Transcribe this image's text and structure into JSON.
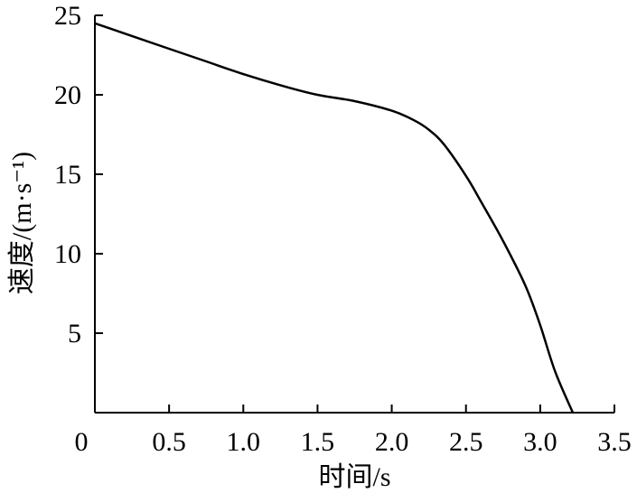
{
  "chart_data": {
    "type": "line",
    "xlabel": "时间/s",
    "ylabel": "速度/(m·s⁻¹)",
    "xlim": [
      0,
      3.5
    ],
    "ylim": [
      0,
      25
    ],
    "x_ticks": [
      0,
      0.5,
      1.0,
      1.5,
      2.0,
      2.5,
      3.0,
      3.5
    ],
    "x_tick_labels": [
      "0",
      "0.5",
      "1.0",
      "1.5",
      "2.0",
      "2.5",
      "3.0",
      "3.5"
    ],
    "y_ticks": [
      5,
      10,
      15,
      20,
      25
    ],
    "y_tick_labels": [
      "5",
      "10",
      "15",
      "20",
      "25"
    ],
    "grid": false,
    "series": [
      {
        "x": [
          0,
          0.25,
          0.5,
          0.75,
          1.0,
          1.25,
          1.5,
          1.75,
          2.0,
          2.15,
          2.25,
          2.35,
          2.5,
          2.6,
          2.75,
          2.9,
          3.0,
          3.1,
          3.22
        ],
        "y": [
          24.5,
          23.7,
          22.9,
          22.1,
          21.3,
          20.6,
          20.0,
          19.6,
          19.0,
          18.4,
          17.8,
          16.9,
          14.9,
          13.3,
          10.8,
          8.0,
          5.5,
          2.6,
          0
        ]
      }
    ]
  }
}
